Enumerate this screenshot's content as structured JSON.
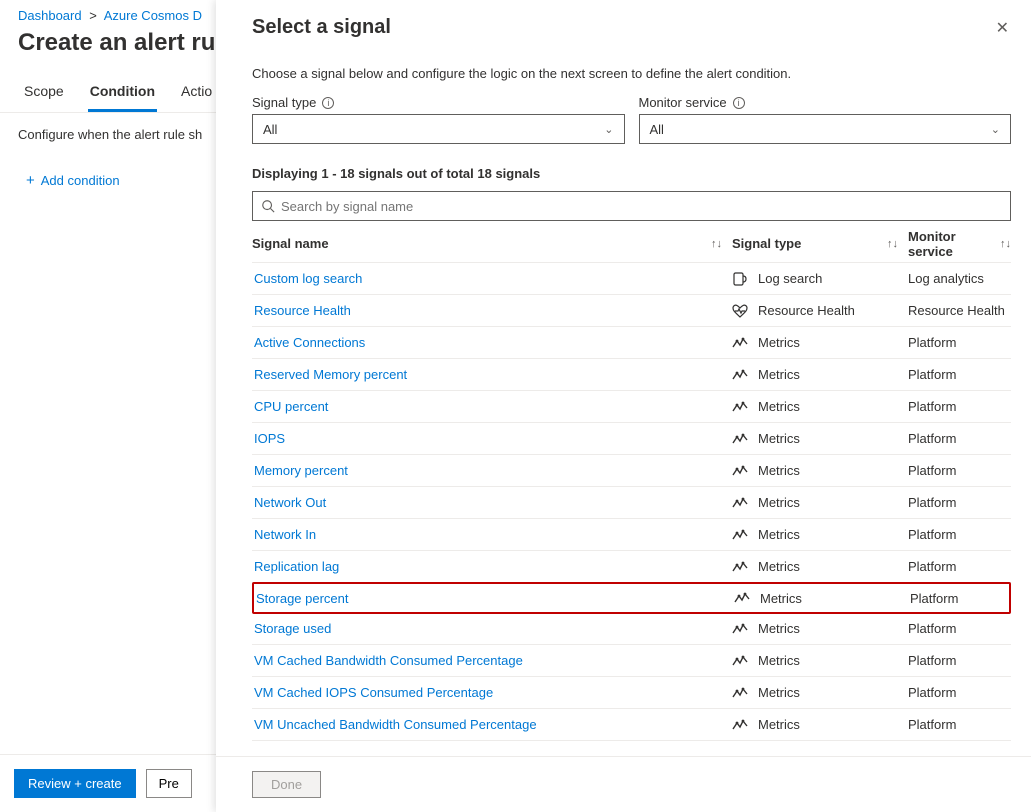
{
  "breadcrumb": {
    "item1": "Dashboard",
    "item2": "Azure Cosmos D"
  },
  "page_title": "Create an alert ru",
  "tabs": {
    "scope": "Scope",
    "condition": "Condition",
    "actions": "Actio"
  },
  "subtext": "Configure when the alert rule sh",
  "add_condition": "Add condition",
  "bottom": {
    "primary": "Review + create",
    "secondary": "Pre"
  },
  "panel": {
    "title": "Select a signal",
    "desc": "Choose a signal below and configure the logic on the next screen to define the alert condition.",
    "signal_type_label": "Signal type",
    "signal_type_value": "All",
    "monitor_label": "Monitor service",
    "monitor_value": "All",
    "count_text": "Displaying 1 - 18 signals out of total 18 signals",
    "search_placeholder": "Search by signal name",
    "columns": {
      "name": "Signal name",
      "type": "Signal type",
      "svc": "Monitor service"
    },
    "done": "Done",
    "highlight_color": "#c00000",
    "signals": [
      {
        "name": "Custom log search",
        "type": "Log search",
        "svc": "Log analytics",
        "icon": "log"
      },
      {
        "name": "Resource Health",
        "type": "Resource Health",
        "svc": "Resource Health",
        "icon": "heart"
      },
      {
        "name": "Active Connections",
        "type": "Metrics",
        "svc": "Platform",
        "icon": "metric"
      },
      {
        "name": "Reserved Memory percent",
        "type": "Metrics",
        "svc": "Platform",
        "icon": "metric"
      },
      {
        "name": "CPU percent",
        "type": "Metrics",
        "svc": "Platform",
        "icon": "metric"
      },
      {
        "name": "IOPS",
        "type": "Metrics",
        "svc": "Platform",
        "icon": "metric"
      },
      {
        "name": "Memory percent",
        "type": "Metrics",
        "svc": "Platform",
        "icon": "metric"
      },
      {
        "name": "Network Out",
        "type": "Metrics",
        "svc": "Platform",
        "icon": "metric"
      },
      {
        "name": "Network In",
        "type": "Metrics",
        "svc": "Platform",
        "icon": "metric"
      },
      {
        "name": "Replication lag",
        "type": "Metrics",
        "svc": "Platform",
        "icon": "metric"
      },
      {
        "name": "Storage percent",
        "type": "Metrics",
        "svc": "Platform",
        "icon": "metric",
        "highlight": true
      },
      {
        "name": "Storage used",
        "type": "Metrics",
        "svc": "Platform",
        "icon": "metric"
      },
      {
        "name": "VM Cached Bandwidth Consumed Percentage",
        "type": "Metrics",
        "svc": "Platform",
        "icon": "metric"
      },
      {
        "name": "VM Cached IOPS Consumed Percentage",
        "type": "Metrics",
        "svc": "Platform",
        "icon": "metric"
      },
      {
        "name": "VM Uncached Bandwidth Consumed Percentage",
        "type": "Metrics",
        "svc": "Platform",
        "icon": "metric"
      }
    ]
  }
}
